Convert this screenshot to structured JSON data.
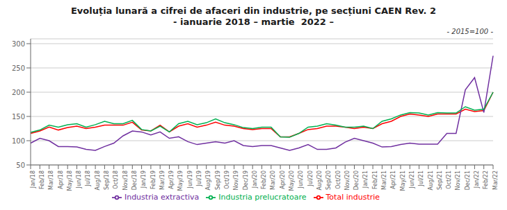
{
  "chart_data": {
    "type": "line",
    "title": "Evoluția lunară a cifrei de afaceri din industrie, pe secțiuni CAEN Rev. 2",
    "subtitle": "- ianuarie 2018 – martie  2022 –",
    "annotations": [
      "- 2015=100 -"
    ],
    "categories": [
      "Jan/18",
      "Feb/18",
      "Mar/18",
      "Apr/18",
      "May/18",
      "Jun/18",
      "Jul/18",
      "Aug/18",
      "Sep/18",
      "Oct/18",
      "Nov/18",
      "Dec/18",
      "Jan/19",
      "Feb/19",
      "Mar/19",
      "Apr/19",
      "May/19",
      "Jun/19",
      "Jul/19",
      "Aug/19",
      "Sep/19",
      "Oct/19",
      "Nov/19",
      "Dec/19",
      "Jan/20",
      "Feb/20",
      "Mar/20",
      "Apr/20",
      "May/20",
      "Jun/20",
      "Jul/20",
      "Aug/20",
      "Sep/20",
      "Oct/20",
      "Nov/20",
      "Dec/20",
      "Jan/21",
      "Feb/21",
      "Mar/21",
      "Apr/21",
      "May/21",
      "Jun/21",
      "Jul/21",
      "Aug/21",
      "Sep/21",
      "Oct/21",
      "Nov/21",
      "Dec/21",
      "Jan/22",
      "Feb/22",
      "Mar/22"
    ],
    "series": [
      {
        "name": "Total industrie",
        "color": "#ff0000",
        "values": [
          115,
          120,
          128,
          122,
          127,
          130,
          125,
          128,
          132,
          132,
          132,
          138,
          122,
          120,
          132,
          118,
          130,
          135,
          128,
          132,
          138,
          132,
          130,
          125,
          123,
          125,
          125,
          108,
          108,
          115,
          123,
          125,
          130,
          130,
          128,
          125,
          128,
          125,
          135,
          140,
          150,
          155,
          153,
          150,
          155,
          155,
          155,
          165,
          160,
          162,
          200
        ]
      },
      {
        "name": "Industria extractiva",
        "color": "#7030a0",
        "values": [
          95,
          105,
          100,
          88,
          88,
          87,
          82,
          80,
          88,
          95,
          110,
          120,
          118,
          112,
          118,
          105,
          108,
          98,
          92,
          95,
          98,
          95,
          100,
          90,
          88,
          90,
          90,
          85,
          80,
          85,
          92,
          82,
          82,
          85,
          97,
          105,
          100,
          95,
          87,
          88,
          92,
          95,
          93,
          93,
          93,
          115,
          115,
          205,
          230,
          158,
          275
        ]
      },
      {
        "name": "Industria prelucratoare",
        "color": "#00b050",
        "values": [
          117,
          122,
          132,
          128,
          133,
          135,
          128,
          133,
          140,
          135,
          135,
          142,
          123,
          120,
          130,
          118,
          135,
          140,
          133,
          137,
          145,
          137,
          133,
          127,
          125,
          128,
          128,
          108,
          107,
          115,
          128,
          130,
          135,
          132,
          128,
          128,
          130,
          125,
          140,
          145,
          153,
          158,
          157,
          153,
          158,
          157,
          157,
          170,
          163,
          165,
          200
        ]
      }
    ],
    "ylim": [
      50,
      310
    ],
    "yticks": [
      50,
      100,
      150,
      200,
      250,
      300
    ],
    "grid": true,
    "legend": "bottom"
  }
}
